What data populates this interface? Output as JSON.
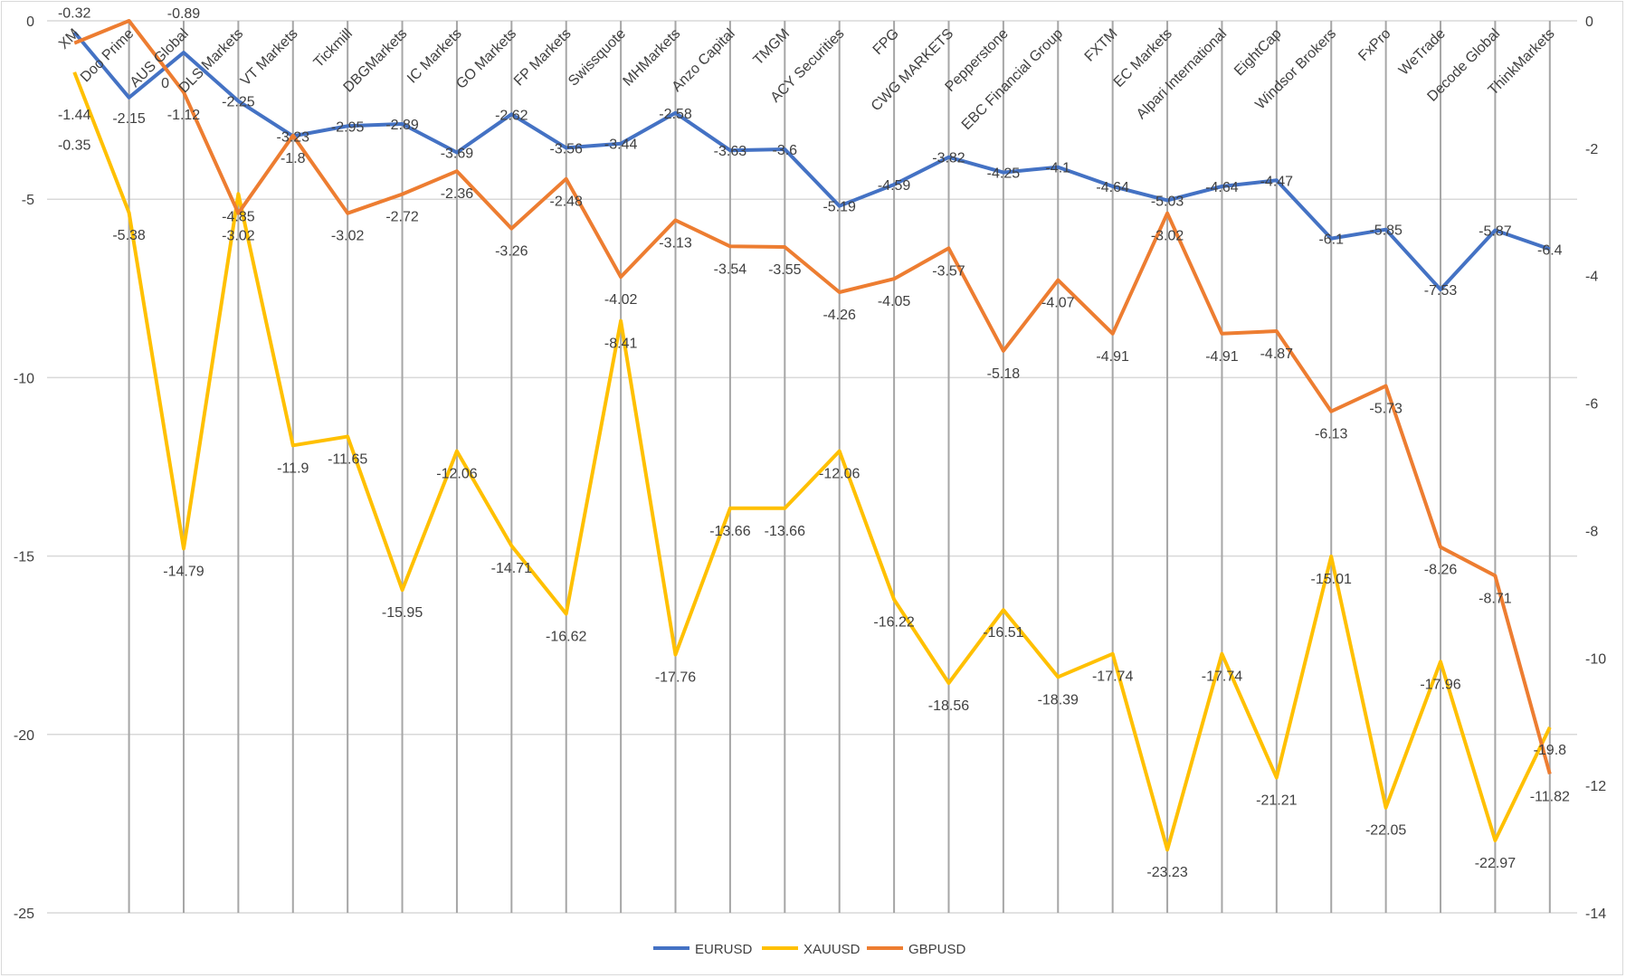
{
  "chart_data": {
    "type": "line",
    "title": "",
    "categories": [
      "XM",
      "Doo Prime",
      "AUS Global",
      "DLS Markets",
      "VT Markets",
      "Tickmill",
      "DBGMarkets",
      "IC Markets",
      "GO Markets",
      "FP Markets",
      "Swissquote",
      "MHMarkets",
      "Anzo Capital",
      "TMGM",
      "ACY Securities",
      "FPG",
      "CWG MARKETS",
      "Pepperstone",
      "EBC Financial Group",
      "FXTM",
      "EC Markets",
      "Alpari International",
      "EightCap",
      "Windsor Brokers",
      "FxPro",
      "WeTrade",
      "Decode Global",
      "ThinkMarkets"
    ],
    "left_axis": {
      "ylim": [
        -25,
        0
      ],
      "ticks": [
        "0",
        "-5",
        "-10",
        "-15",
        "-20",
        "-25"
      ],
      "tick_values": [
        0,
        -5,
        -10,
        -15,
        -20,
        -25
      ]
    },
    "right_axis": {
      "ylim": [
        -14,
        0
      ],
      "ticks": [
        "0",
        "-2",
        "-4",
        "-6",
        "-8",
        "-10",
        "-12",
        "-14"
      ],
      "tick_values": [
        0,
        -2,
        -4,
        -6,
        -8,
        -10,
        -12,
        -14
      ]
    },
    "grid": true,
    "legend_position": "bottom",
    "series": [
      {
        "name": "EURUSD",
        "color": "#4472C4",
        "axis": "left",
        "label_pos": "center",
        "values": [
          -0.32,
          -2.15,
          -0.89,
          -2.25,
          -3.23,
          -2.95,
          -2.89,
          -3.69,
          -2.62,
          -3.56,
          -3.44,
          -2.58,
          -3.63,
          -3.6,
          -5.19,
          -4.59,
          -3.82,
          -4.25,
          -4.1,
          -4.64,
          -5.03,
          -4.64,
          -4.47,
          -6.1,
          -5.85,
          -7.53,
          -5.87,
          -6.4
        ]
      },
      {
        "name": "XAUUSD",
        "color": "#FFC000",
        "axis": "left",
        "label_pos": "below",
        "values": [
          -1.44,
          -5.38,
          -14.79,
          -4.85,
          -11.9,
          -11.65,
          -15.95,
          -12.06,
          -14.71,
          -16.62,
          -8.41,
          -17.76,
          -13.66,
          -13.66,
          -12.06,
          -16.22,
          -18.56,
          -16.51,
          -18.39,
          -17.74,
          -23.23,
          -17.74,
          -21.21,
          -15.01,
          -22.05,
          -17.96,
          -22.97,
          -19.8
        ]
      },
      {
        "name": "GBPUSD",
        "color": "#ED7D31",
        "axis": "right",
        "label_pos": "below",
        "values": [
          -0.35,
          0,
          -1.12,
          -3.02,
          -1.8,
          -3.02,
          -2.72,
          -2.36,
          -3.26,
          -2.48,
          -4.02,
          -3.13,
          -3.54,
          -3.55,
          -4.26,
          -4.05,
          -3.57,
          -5.18,
          -4.07,
          -4.91,
          -3.02,
          -4.91,
          -4.87,
          -6.13,
          -5.73,
          -8.26,
          -8.71,
          -11.82
        ]
      }
    ]
  }
}
